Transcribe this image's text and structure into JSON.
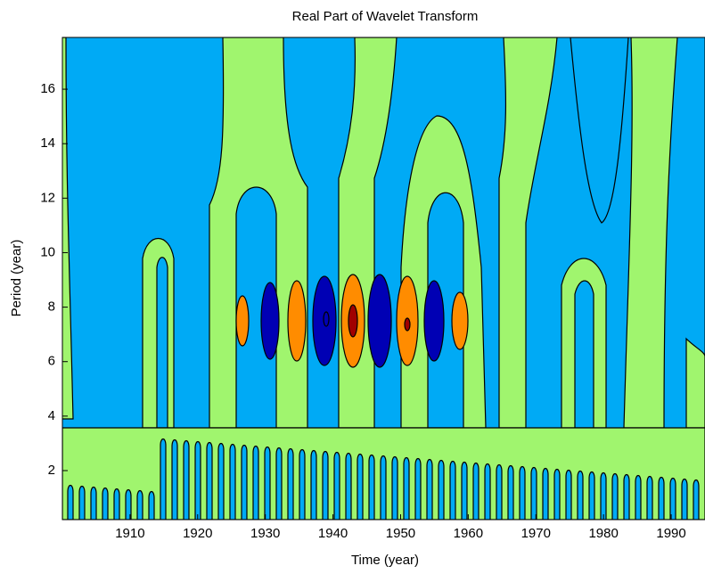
{
  "chart_data": {
    "type": "contour",
    "title": "Real Part of Wavelet Transform",
    "xlabel": "Time (year)",
    "ylabel": "Period (year)",
    "xlim": [
      1900,
      1995
    ],
    "ylim": [
      0.2,
      17.9
    ],
    "xticks": [
      1910,
      1920,
      1930,
      1940,
      1950,
      1960,
      1970,
      1980,
      1990
    ],
    "yticks": [
      2,
      4,
      6,
      8,
      10,
      12,
      14,
      16
    ],
    "colors": [
      "#0000b4",
      "#00aaf5",
      "#a0f56e",
      "#ff8c00",
      "#a00000"
    ]
  }
}
